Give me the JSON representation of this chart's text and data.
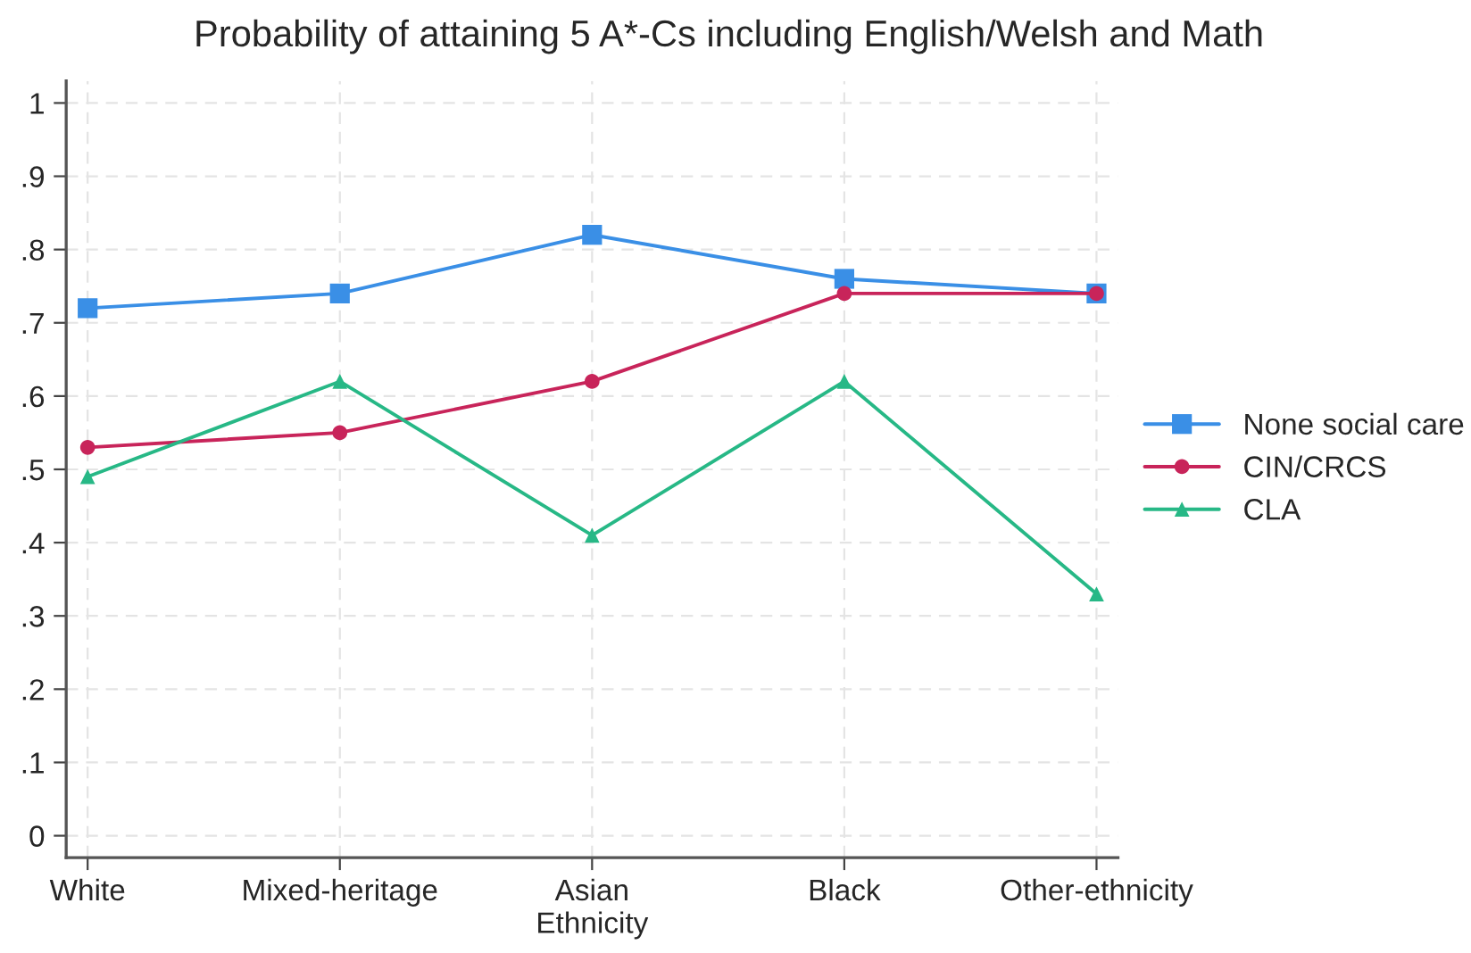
{
  "chart_data": {
    "type": "line",
    "title": "Probability of attaining 5 A*-Cs including English/Welsh and Math",
    "xlabel": "Ethnicity",
    "categories": [
      "White",
      "Mixed-heritage",
      "Asian",
      "Black",
      "Other-ethnicity"
    ],
    "series": [
      {
        "name": "None social care",
        "color": "#3a8fe6",
        "marker": "square",
        "values": [
          0.72,
          0.74,
          0.82,
          0.76,
          0.74
        ]
      },
      {
        "name": "CIN/CRCS",
        "color": "#c8245a",
        "marker": "circle",
        "values": [
          0.53,
          0.55,
          0.62,
          0.74,
          0.74
        ]
      },
      {
        "name": "CLA",
        "color": "#27b886",
        "marker": "triangle",
        "values": [
          0.49,
          0.62,
          0.41,
          0.62,
          0.33
        ]
      }
    ],
    "ylim": [
      -0.03,
      1.03
    ],
    "yticks": [
      {
        "value": 0,
        "label": "0"
      },
      {
        "value": 0.1,
        "label": ".1"
      },
      {
        "value": 0.2,
        "label": ".2"
      },
      {
        "value": 0.3,
        "label": ".3"
      },
      {
        "value": 0.4,
        "label": ".4"
      },
      {
        "value": 0.5,
        "label": ".5"
      },
      {
        "value": 0.6,
        "label": ".6"
      },
      {
        "value": 0.7,
        "label": ".7"
      },
      {
        "value": 0.8,
        "label": ".8"
      },
      {
        "value": 0.9,
        "label": ".9"
      },
      {
        "value": 1,
        "label": "1"
      }
    ],
    "grid": true,
    "legend": "right",
    "line_style": "solid"
  }
}
